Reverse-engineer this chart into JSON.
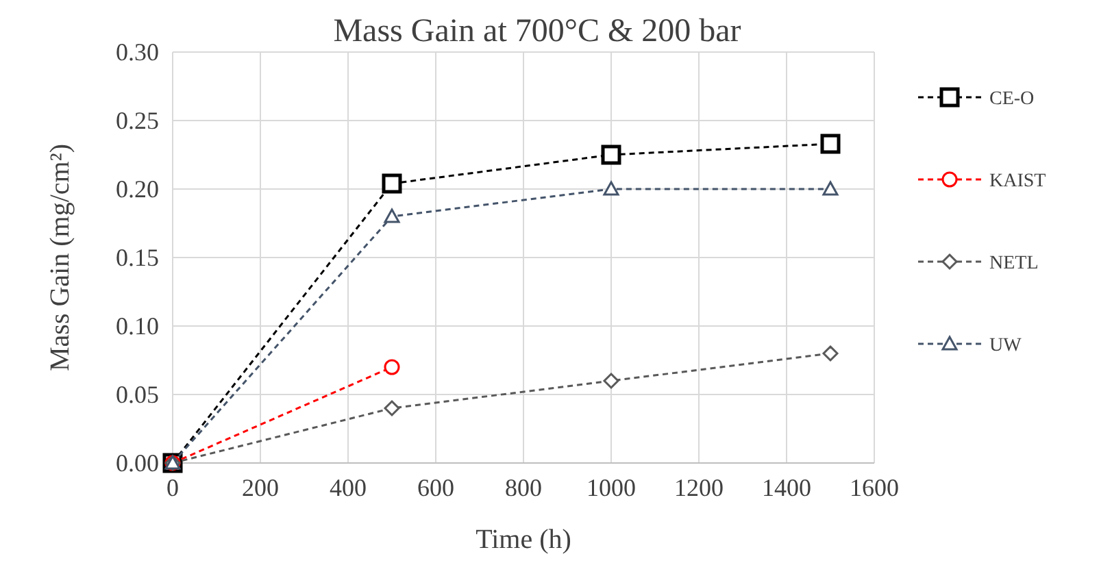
{
  "chart_data": {
    "type": "line",
    "title": "Mass Gain at 700°C & 200 bar",
    "xlabel": "Time (h)",
    "ylabel": "Mass Gain (mg/cm²)",
    "xlim": [
      0,
      1600
    ],
    "xticks": [
      0,
      200,
      400,
      600,
      800,
      1000,
      1200,
      1400,
      1600
    ],
    "ylim": [
      0,
      0.3
    ],
    "yticks": [
      {
        "value": 0,
        "label": "0.00"
      },
      {
        "value": 0.05,
        "label": "0.05"
      },
      {
        "value": 0.1,
        "label": "0.10"
      },
      {
        "value": 0.15,
        "label": "0.15"
      },
      {
        "value": 0.2,
        "label": "0.20"
      },
      {
        "value": 0.25,
        "label": "0.25"
      },
      {
        "value": 0.3,
        "label": "0.30"
      }
    ],
    "grid": true,
    "legend": "right",
    "line_style": "dashed",
    "series": [
      {
        "name": "CE-O",
        "color": "#000000",
        "marker": "square",
        "x": [
          0,
          500,
          1000,
          1500
        ],
        "values": [
          0,
          0.204,
          0.225,
          0.233
        ]
      },
      {
        "name": "KAIST",
        "color": "#ff0000",
        "marker": "circle",
        "x": [
          0,
          500
        ],
        "values": [
          0,
          0.07
        ]
      },
      {
        "name": "NETL",
        "color": "#595959",
        "marker": "diamond",
        "x": [
          0,
          500,
          1000,
          1500
        ],
        "values": [
          0,
          0.04,
          0.06,
          0.08
        ]
      },
      {
        "name": "UW",
        "color": "#44546a",
        "marker": "triangle",
        "x": [
          0,
          500,
          1000,
          1500
        ],
        "values": [
          0,
          0.18,
          0.2,
          0.2
        ]
      }
    ]
  }
}
